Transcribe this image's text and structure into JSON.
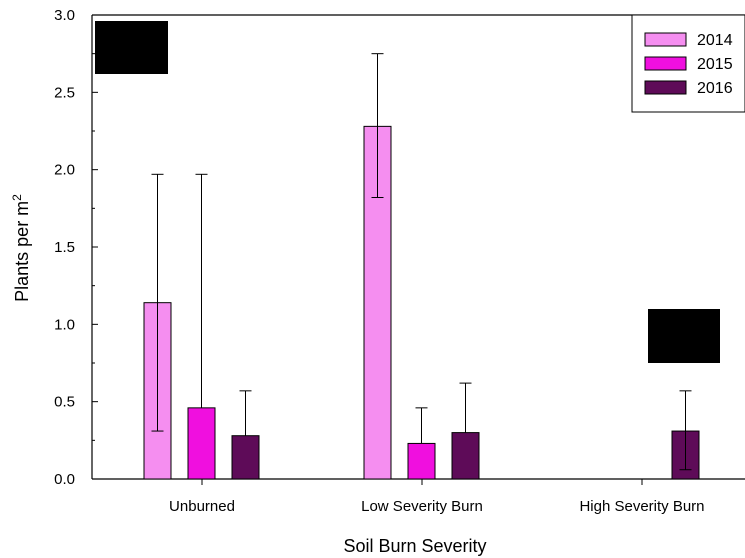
{
  "chart_data": {
    "type": "bar",
    "title": "",
    "xlabel": "Soil Burn Severity",
    "ylabel": "Plants per m",
    "ylabel_superscript": "2",
    "categories": [
      "Unburned",
      "Low Severity Burn",
      "High Severity Burn"
    ],
    "ylim": [
      0,
      3.0
    ],
    "yticks": [
      0.0,
      0.5,
      1.0,
      1.5,
      2.0,
      2.5,
      3.0
    ],
    "ytick_labels": [
      "0.0",
      "0.5",
      "1.0",
      "1.5",
      "2.0",
      "2.5",
      "3.0"
    ],
    "grid": false,
    "legend_position": "top-right",
    "series": [
      {
        "name": "2014",
        "color": "#f58ef0",
        "values": [
          1.14,
          2.28,
          0
        ],
        "error_low": [
          0.31,
          1.82,
          null
        ],
        "error_high": [
          1.97,
          2.75,
          null
        ]
      },
      {
        "name": "2015",
        "color": "#f00fdf",
        "values": [
          0.46,
          0.23,
          0
        ],
        "error_low": [
          null,
          null,
          null
        ],
        "error_high": [
          1.97,
          0.46,
          null
        ]
      },
      {
        "name": "2016",
        "color": "#5e0b58",
        "values": [
          0.28,
          0.3,
          0.31
        ],
        "error_low": [
          null,
          null,
          0.06
        ],
        "error_high": [
          0.57,
          0.62,
          0.57
        ]
      }
    ],
    "redaction_color": "#000000"
  }
}
